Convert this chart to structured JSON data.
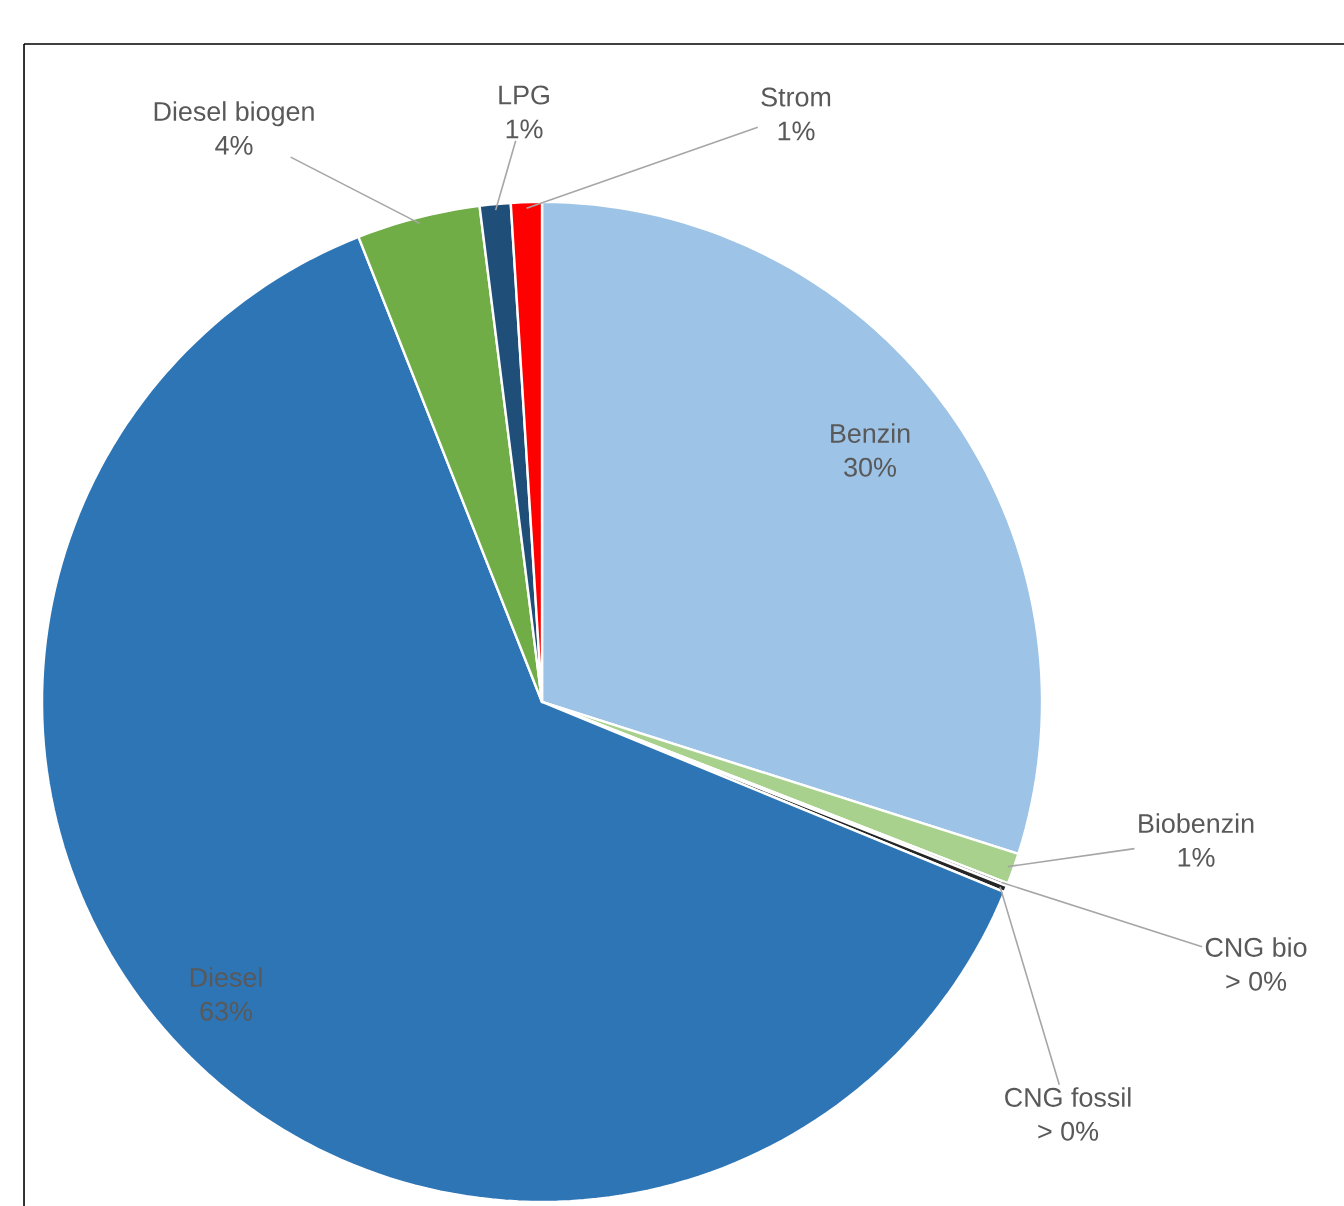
{
  "chart_data": {
    "type": "pie",
    "categories": [
      "Benzin",
      "Biobenzin",
      "CNG bio",
      "CNG fossil",
      "Diesel",
      "Diesel biogen",
      "LPG",
      "Strom"
    ],
    "values": [
      30,
      1,
      0.1,
      0.2,
      63,
      4,
      1,
      1
    ],
    "value_labels": [
      "30%",
      "1%",
      "> 0%",
      "> 0%",
      "63%",
      "4%",
      "1%",
      "1%"
    ],
    "colors": [
      "#9dc3e6",
      "#a9d18e",
      "#595959",
      "#262626",
      "#2e75b6",
      "#70ad47",
      "#1f4e79",
      "#ff0000"
    ]
  }
}
